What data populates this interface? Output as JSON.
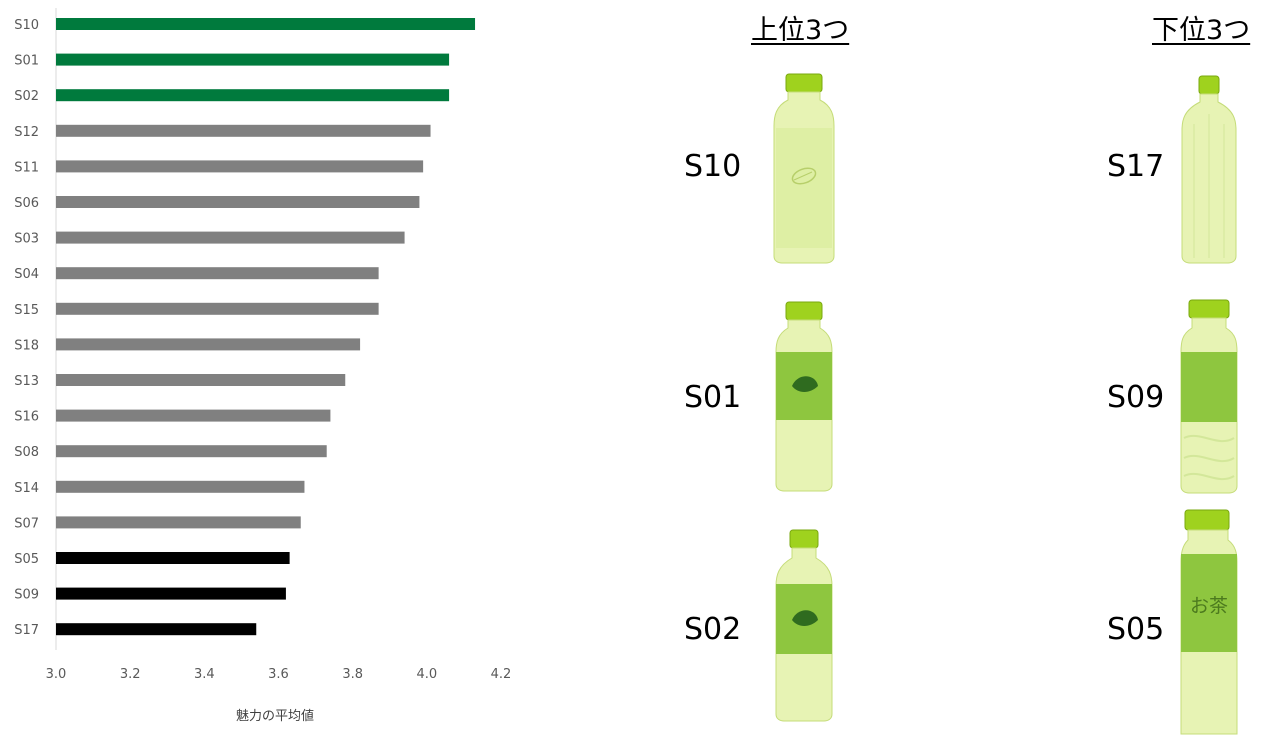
{
  "chart_data": {
    "type": "bar",
    "orientation": "horizontal",
    "categories": [
      "S10",
      "S01",
      "S02",
      "S12",
      "S11",
      "S06",
      "S03",
      "S04",
      "S15",
      "S18",
      "S13",
      "S16",
      "S08",
      "S14",
      "S07",
      "S05",
      "S09",
      "S17"
    ],
    "values": [
      4.13,
      4.06,
      4.06,
      4.01,
      3.99,
      3.98,
      3.94,
      3.87,
      3.87,
      3.82,
      3.78,
      3.74,
      3.73,
      3.67,
      3.66,
      3.63,
      3.62,
      3.54
    ],
    "xlim": [
      3.0,
      4.2
    ],
    "xticks": [
      "3.0",
      "3.2",
      "3.4",
      "3.6",
      "3.8",
      "4.0",
      "4.2"
    ],
    "xlabel": "魅力の平均値",
    "ylabel": "",
    "grid": false,
    "colors": {
      "top3": "#007a3d",
      "middle": "#808080",
      "bottom3": "#000000"
    }
  },
  "panels": {
    "top": {
      "title": "上位3つ",
      "items": [
        {
          "label": "S10",
          "icon": "leaf-embossed-bottle-icon"
        },
        {
          "label": "S01",
          "icon": "leaf-label-bottle-icon"
        },
        {
          "label": "S02",
          "icon": "leaf-label-bottle-icon"
        }
      ]
    },
    "bottom": {
      "title": "下位3つ",
      "items": [
        {
          "label": "S17",
          "icon": "plain-tall-bottle-icon"
        },
        {
          "label": "S09",
          "icon": "green-label-bottle-icon"
        },
        {
          "label": "S05",
          "icon": "ocha-label-bottle-icon",
          "bottle_text": "お茶"
        }
      ]
    }
  }
}
